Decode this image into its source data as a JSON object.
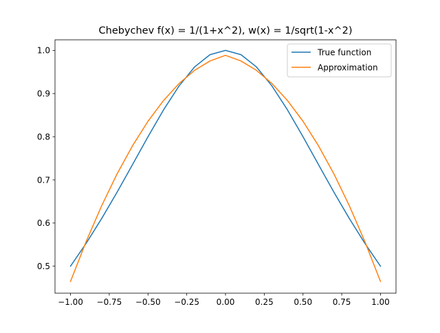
{
  "chart_data": {
    "type": "line",
    "title": "Chebychev f(x) = 1/(1+x^2), w(x) = 1/sqrt(1-x^2)",
    "xlabel": "",
    "ylabel": "",
    "xlim": [
      -1.1,
      1.1
    ],
    "ylim": [
      0.4375,
      1.0245
    ],
    "x_ticks": [
      -1.0,
      -0.75,
      -0.5,
      -0.25,
      0.0,
      0.25,
      0.5,
      0.75,
      1.0
    ],
    "x_tick_labels": [
      "−1.00",
      "−0.75",
      "−0.50",
      "−0.25",
      "0.00",
      "0.25",
      "0.50",
      "0.75",
      "1.00"
    ],
    "y_ticks": [
      0.5,
      0.6,
      0.7,
      0.8,
      0.9,
      1.0
    ],
    "y_tick_labels": [
      "0.5",
      "0.6",
      "0.7",
      "0.8",
      "0.9",
      "1.0"
    ],
    "grid": false,
    "legend_position": "top-right",
    "series": [
      {
        "name": "True function",
        "color": "#1f77b4",
        "x": [
          -1.0,
          -0.9,
          -0.8,
          -0.7,
          -0.6,
          -0.5,
          -0.4,
          -0.3,
          -0.2,
          -0.1,
          0.0,
          0.1,
          0.2,
          0.3,
          0.4,
          0.5,
          0.6,
          0.7,
          0.8,
          0.9,
          1.0
        ],
        "values": [
          0.5,
          0.5525,
          0.6098,
          0.6711,
          0.7353,
          0.8,
          0.8621,
          0.9174,
          0.9615,
          0.9901,
          1.0,
          0.9901,
          0.9615,
          0.9174,
          0.8621,
          0.8,
          0.7353,
          0.6711,
          0.6098,
          0.5525,
          0.5
        ]
      },
      {
        "name": "Approximation",
        "color": "#ff7f0e",
        "x": [
          -1.0,
          -0.9,
          -0.8,
          -0.7,
          -0.6,
          -0.5,
          -0.4,
          -0.3,
          -0.2,
          -0.1,
          0.0,
          0.1,
          0.2,
          0.3,
          0.4,
          0.5,
          0.6,
          0.7,
          0.8,
          0.9,
          1.0
        ],
        "values": [
          0.4646,
          0.5563,
          0.6393,
          0.7135,
          0.779,
          0.8358,
          0.8838,
          0.9231,
          0.9537,
          0.9755,
          0.9886,
          0.9755,
          0.9537,
          0.9231,
          0.8838,
          0.8358,
          0.779,
          0.7135,
          0.6393,
          0.5563,
          0.4646
        ]
      }
    ]
  }
}
